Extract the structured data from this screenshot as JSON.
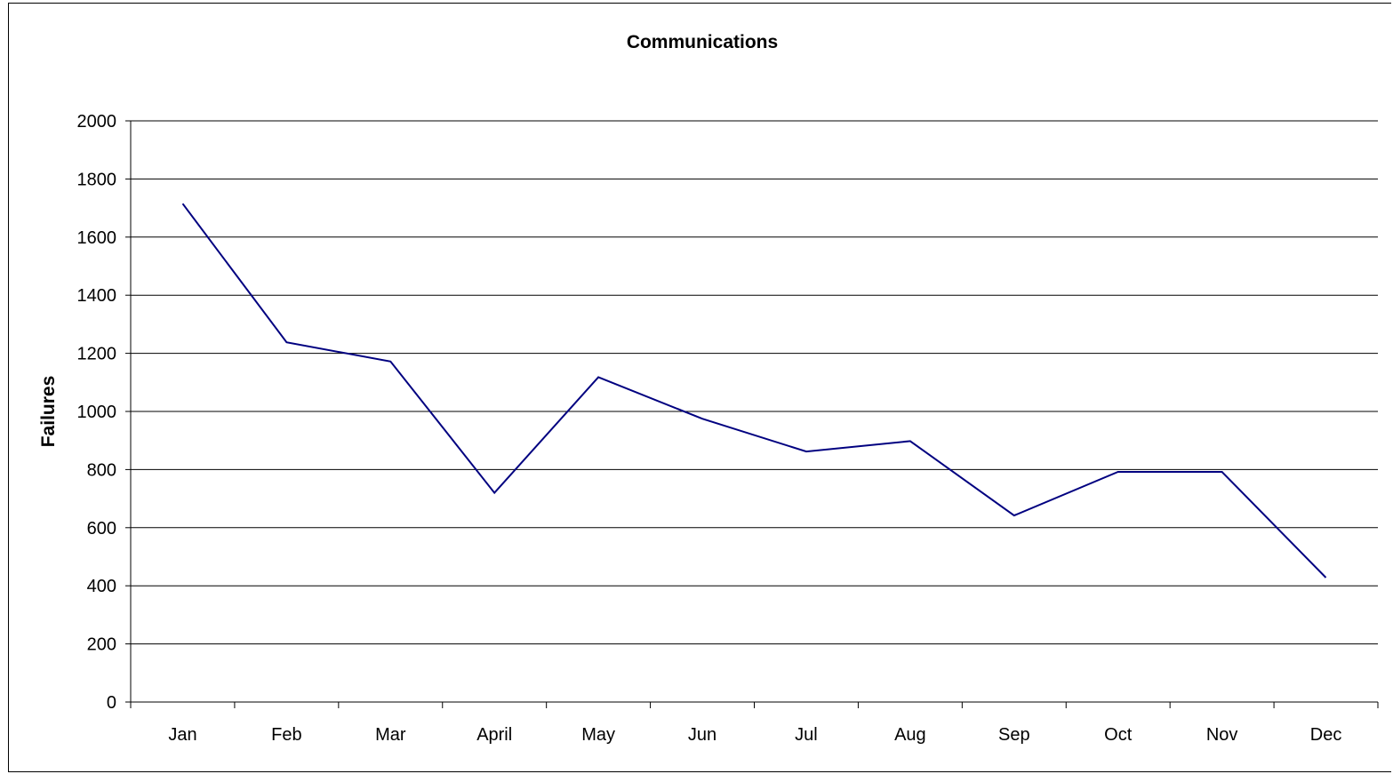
{
  "chart_data": {
    "type": "line",
    "title": "Communications",
    "xlabel": "",
    "ylabel": "Failures",
    "categories": [
      "Jan",
      "Feb",
      "Mar",
      "April",
      "May",
      "Jun",
      "Jul",
      "Aug",
      "Sep",
      "Oct",
      "Nov",
      "Dec"
    ],
    "series": [
      {
        "values": [
          1715,
          1238,
          1172,
          720,
          1118,
          975,
          862,
          898,
          642,
          792,
          792,
          428
        ]
      }
    ],
    "ylim": [
      0,
      2000
    ],
    "yticks": [
      0,
      200,
      400,
      600,
      800,
      1000,
      1200,
      1400,
      1600,
      1800,
      2000
    ],
    "grid": true,
    "legend": "none",
    "colors": {
      "line": "#000080",
      "grid": "#000000",
      "axis": "#000000",
      "border": "#000000"
    }
  }
}
